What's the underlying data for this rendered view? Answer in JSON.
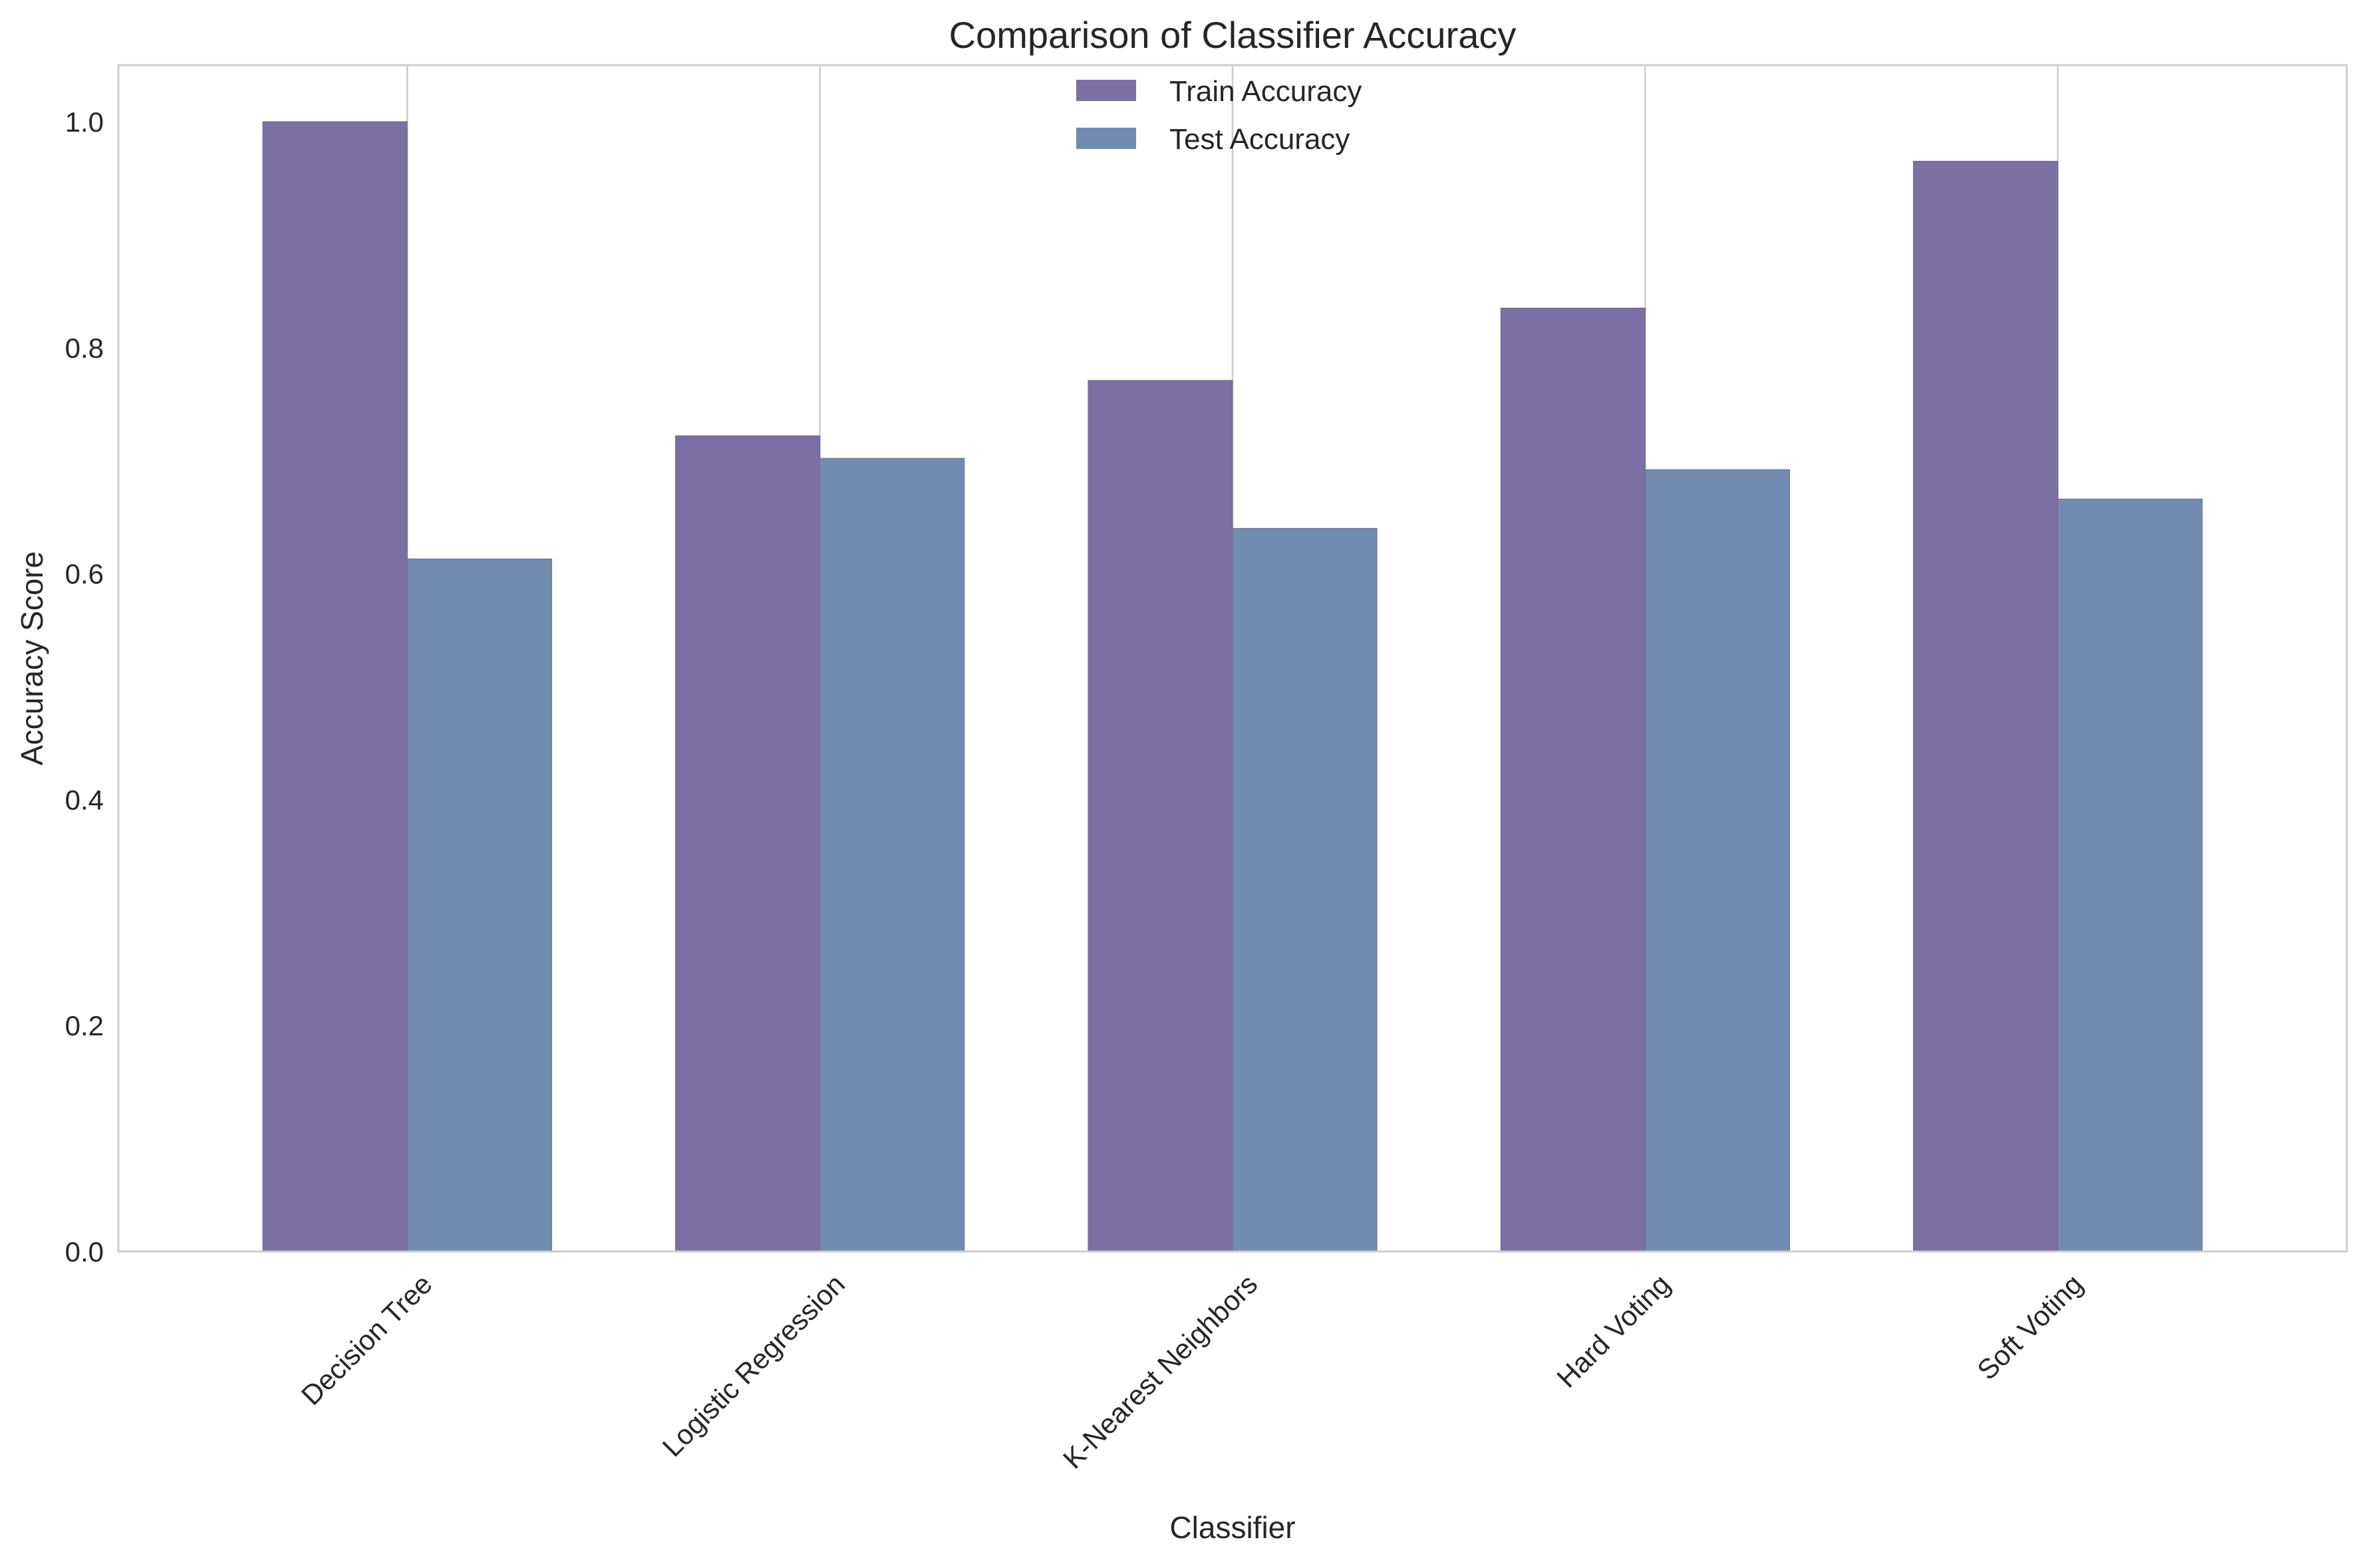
{
  "chart_data": {
    "type": "bar",
    "title": "Comparison of Classifier Accuracy",
    "xlabel": "Classifier",
    "ylabel": "Accuracy Score",
    "categories": [
      "Decision Tree",
      "Logistic Regression",
      "K-Nearest Neighbors",
      "Hard Voting",
      "Soft Voting"
    ],
    "series": [
      {
        "name": "Train Accuracy",
        "color": "#7c6fa3",
        "values": [
          1.0,
          0.722,
          0.771,
          0.835,
          0.965
        ]
      },
      {
        "name": "Test Accuracy",
        "color": "#718cb0",
        "values": [
          0.613,
          0.702,
          0.64,
          0.692,
          0.666
        ]
      }
    ],
    "ylim": [
      0,
      1.05
    ],
    "yticks": [
      "0.0",
      "0.2",
      "0.4",
      "0.6",
      "0.8",
      "1.0"
    ],
    "grid": "vertical",
    "legend": "top-center",
    "colors": {
      "background": "#ffffff",
      "frame": "#cccccc",
      "grid": "#cccccc",
      "text": "#262626"
    }
  }
}
